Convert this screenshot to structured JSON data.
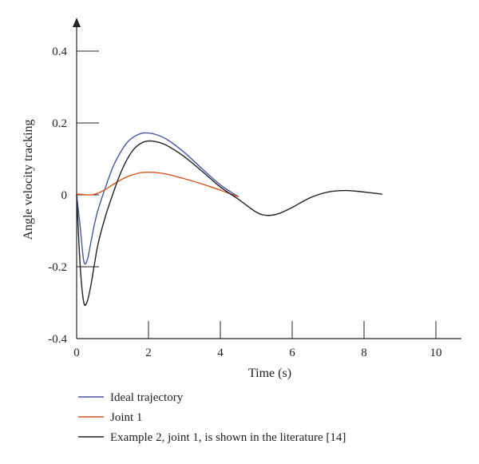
{
  "chart_data": {
    "type": "line",
    "title": "",
    "xlabel": "Time (s)",
    "ylabel": "Angle velocity tracking",
    "xlim": [
      0,
      10
    ],
    "ylim": [
      -0.4,
      0.4
    ],
    "xticks": [
      0,
      2,
      4,
      6,
      8,
      10
    ],
    "xtick_labels": [
      "0",
      "2",
      "4",
      "6",
      "8",
      "10"
    ],
    "yticks": [
      0.4,
      0.2,
      0,
      -0.2,
      -0.4
    ],
    "ytick_labels": [
      "0.4",
      "0.2",
      "0",
      "-0.2",
      "-0.4"
    ],
    "grid": false,
    "legend_position": "bottom",
    "series": [
      {
        "name": "Ideal trajectory",
        "color": "#4a56a6",
        "x": [
          0,
          0.1,
          0.2,
          0.3,
          0.4,
          0.5,
          0.6,
          0.8,
          1.0,
          1.2,
          1.4,
          1.6,
          1.8,
          2.0,
          2.2,
          2.5,
          3.0,
          3.5,
          4.0,
          4.5
        ],
        "y": [
          0.0,
          -0.09,
          -0.185,
          -0.18,
          -0.13,
          -0.08,
          -0.04,
          0.02,
          0.075,
          0.115,
          0.145,
          0.162,
          0.171,
          0.172,
          0.168,
          0.155,
          0.118,
          0.072,
          0.028,
          -0.005
        ]
      },
      {
        "name": "Joint 1",
        "color": "#d9541e",
        "x": [
          0,
          0.2,
          0.4,
          0.6,
          0.8,
          1.0,
          1.2,
          1.4,
          1.6,
          1.8,
          2.0,
          2.2,
          2.5,
          3.0,
          3.5,
          4.0,
          4.5
        ],
        "y": [
          0.002,
          0.001,
          0.0,
          0.005,
          0.015,
          0.028,
          0.04,
          0.05,
          0.057,
          0.062,
          0.063,
          0.062,
          0.058,
          0.045,
          0.03,
          0.013,
          -0.005
        ]
      },
      {
        "name": "Example 2, joint 1, is shown in the literature [14]",
        "color": "#222222",
        "x": [
          0,
          0.1,
          0.2,
          0.3,
          0.4,
          0.5,
          0.6,
          0.8,
          1.0,
          1.2,
          1.4,
          1.6,
          1.8,
          2.0,
          2.2,
          2.5,
          3.0,
          3.5,
          4.0,
          4.5,
          5.0,
          5.3,
          5.6,
          6.0,
          6.5,
          7.0,
          7.5,
          8.0,
          8.5
        ],
        "y": [
          0.0,
          -0.2,
          -0.3,
          -0.295,
          -0.25,
          -0.19,
          -0.135,
          -0.06,
          0.0,
          0.055,
          0.098,
          0.128,
          0.144,
          0.15,
          0.148,
          0.138,
          0.106,
          0.065,
          0.022,
          -0.012,
          -0.048,
          -0.057,
          -0.053,
          -0.035,
          -0.008,
          0.008,
          0.012,
          0.008,
          0.002
        ]
      }
    ]
  }
}
